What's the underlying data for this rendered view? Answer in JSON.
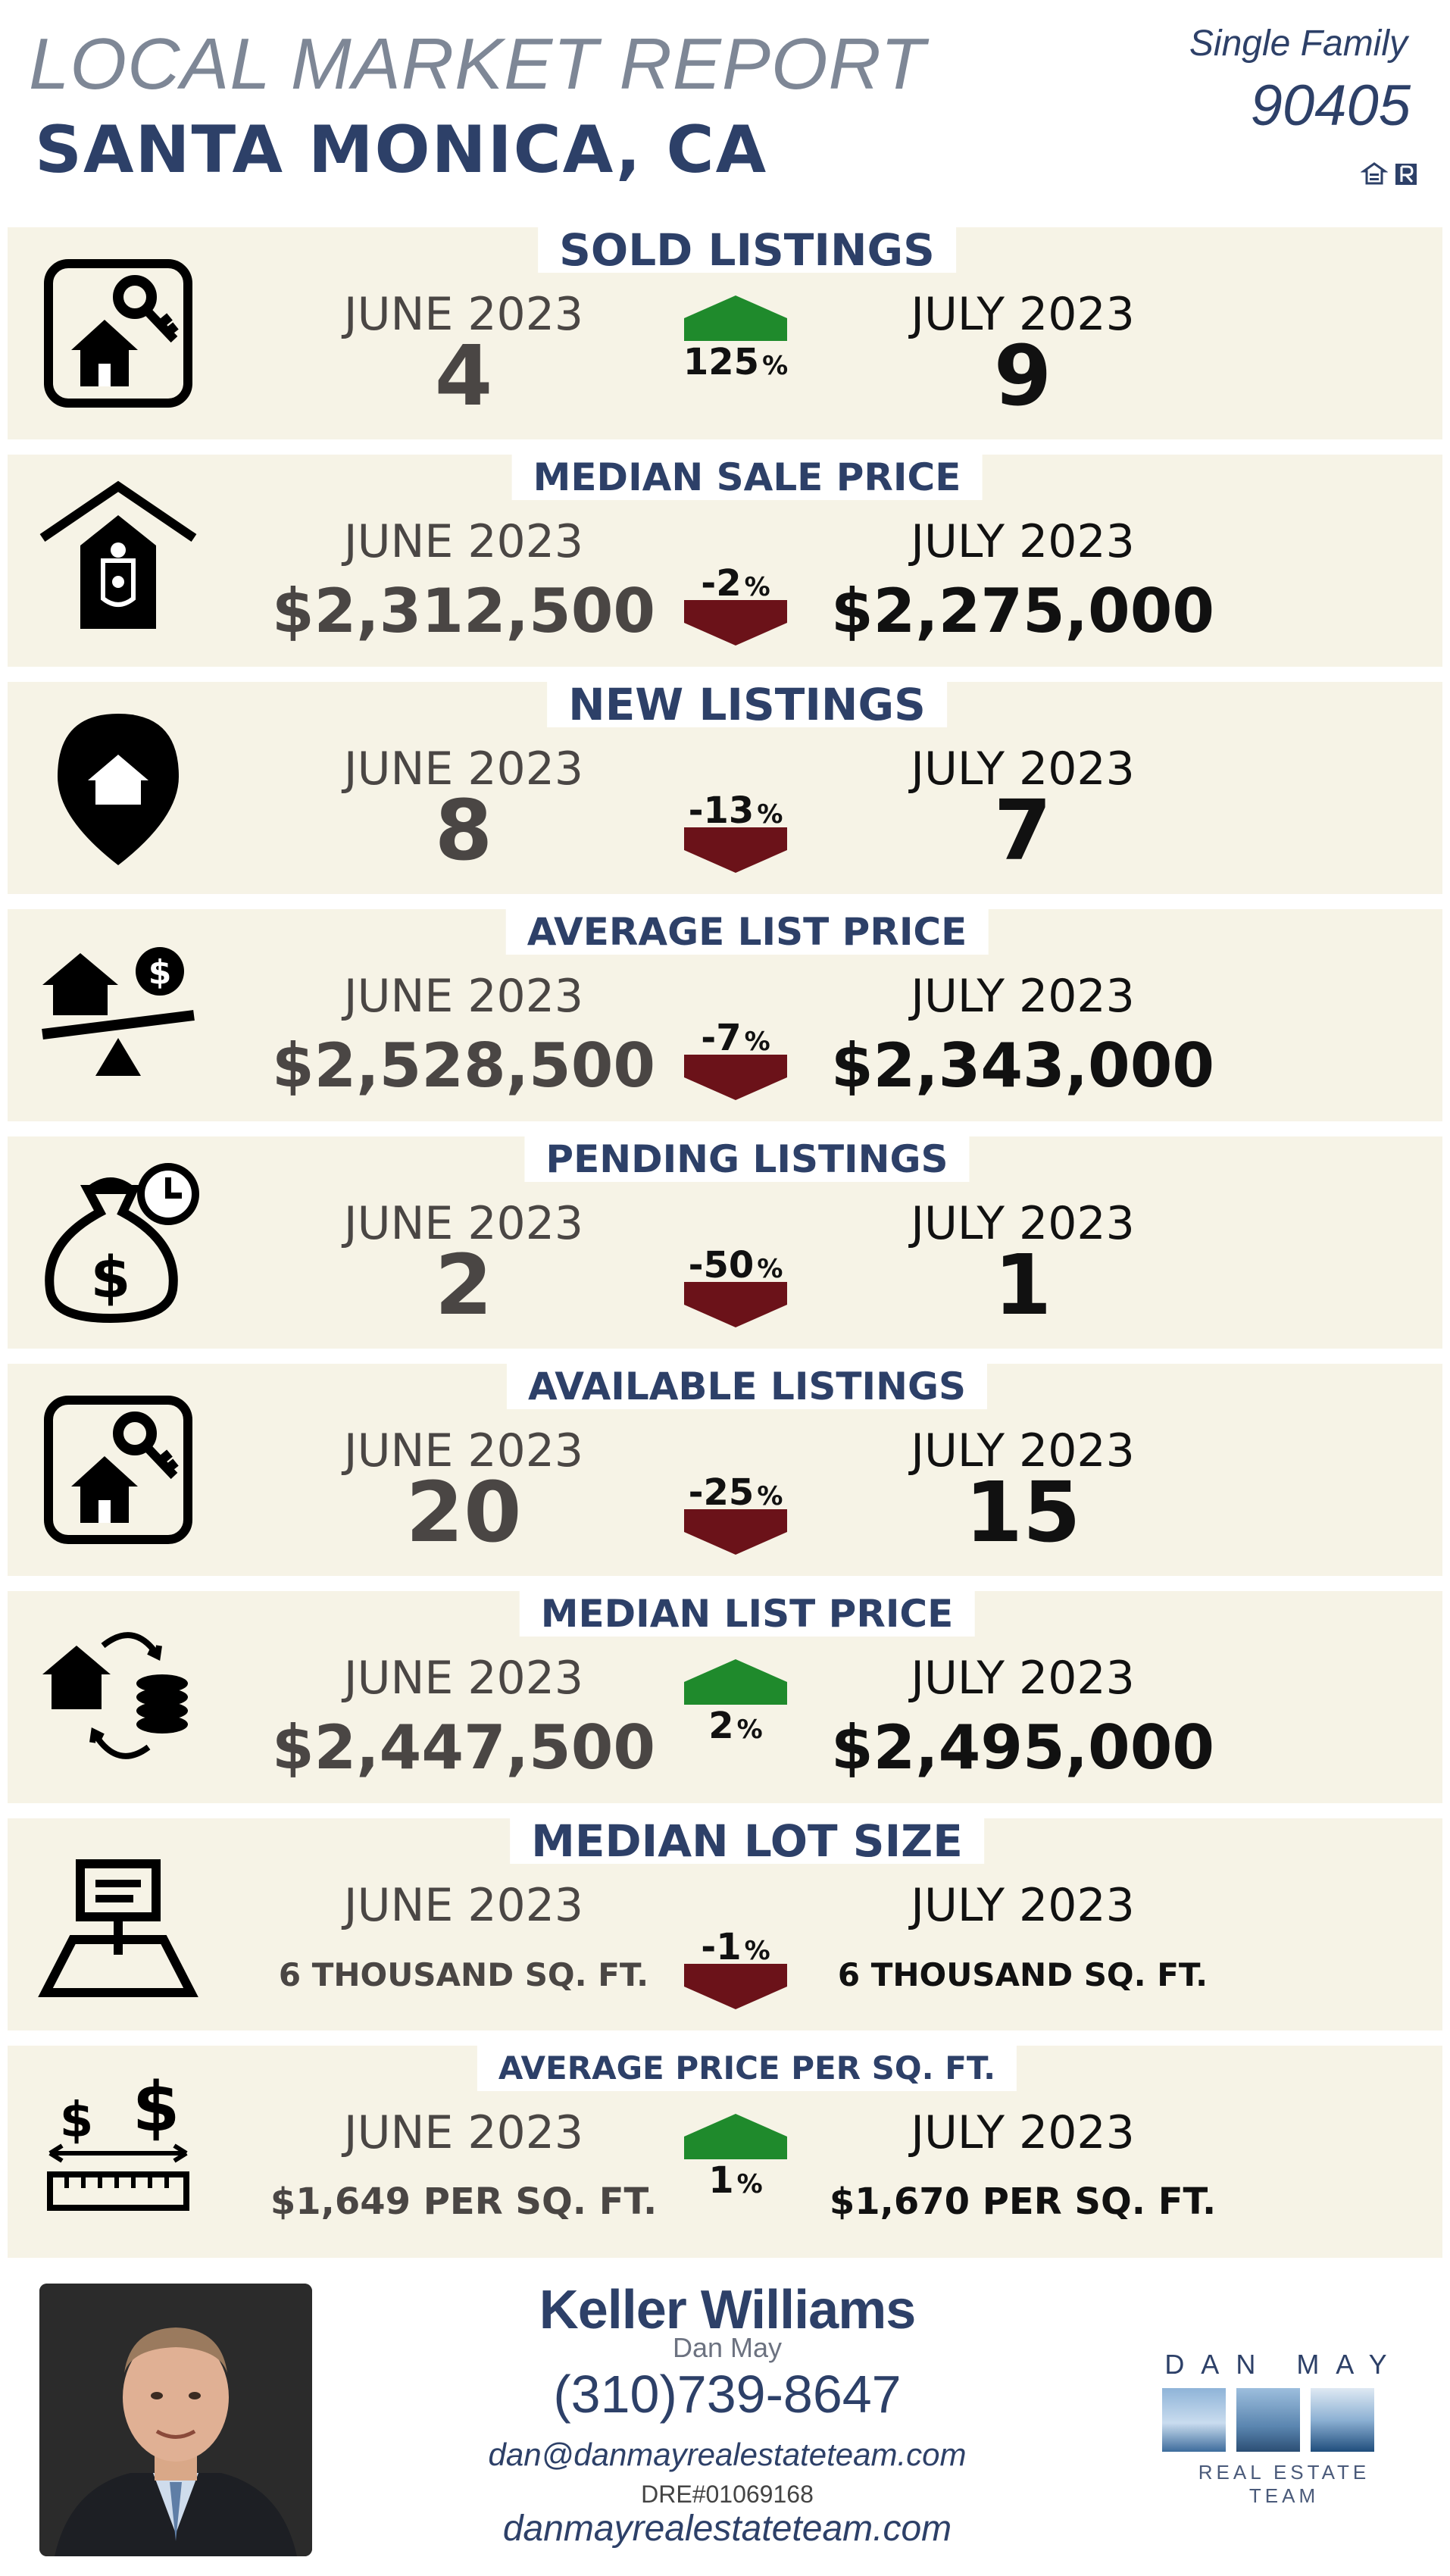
{
  "header": {
    "title": "LOCAL MARKET REPORT",
    "city": "SANTA MONICA, CA",
    "property_type": "Single Family",
    "zip": "90405",
    "logos": [
      "equal-housing-icon",
      "realtor-icon"
    ]
  },
  "colors": {
    "navy": "#2d4068",
    "up_green": "#1f8a2c",
    "down_maroon": "#6b1219",
    "panel": "#f6f3e6"
  },
  "sections": [
    {
      "title": "SOLD LISTINGS",
      "icon": "house-key-icon",
      "june_label": "JUNE 2023",
      "june_value": "4",
      "july_label": "JULY 2023",
      "july_value": "9",
      "change": "125",
      "direction": "up"
    },
    {
      "title": "MEDIAN SALE PRICE",
      "icon": "price-tag-house-icon",
      "june_label": "JUNE 2023",
      "june_value": "$2,312,500",
      "july_label": "JULY 2023",
      "july_value": "$2,275,000",
      "change": "-2",
      "direction": "down"
    },
    {
      "title": "NEW LISTINGS",
      "icon": "location-pin-house-icon",
      "june_label": "JUNE 2023",
      "june_value": "8",
      "july_label": "JULY 2023",
      "july_value": "7",
      "change": "-13",
      "direction": "down"
    },
    {
      "title": "AVERAGE LIST PRICE",
      "icon": "house-scale-icon",
      "june_label": "JUNE 2023",
      "june_value": "$2,528,500",
      "july_label": "JULY 2023",
      "july_value": "$2,343,000",
      "change": "-7",
      "direction": "down"
    },
    {
      "title": "PENDING LISTINGS",
      "icon": "money-bag-clock-icon",
      "june_label": "JUNE 2023",
      "june_value": "2",
      "july_label": "JULY 2023",
      "july_value": "1",
      "change": "-50",
      "direction": "down"
    },
    {
      "title": "AVAILABLE LISTINGS",
      "icon": "house-key-icon",
      "june_label": "JUNE 2023",
      "june_value": "20",
      "july_label": "JULY 2023",
      "july_value": "15",
      "change": "-25",
      "direction": "down"
    },
    {
      "title": "MEDIAN LIST PRICE",
      "icon": "house-coins-exchange-icon",
      "june_label": "JUNE 2023",
      "june_value": "$2,447,500",
      "july_label": "JULY 2023",
      "july_value": "$2,495,000",
      "change": "2",
      "direction": "up"
    },
    {
      "title": "MEDIAN LOT SIZE",
      "icon": "lot-sign-icon",
      "june_label": "JUNE 2023",
      "june_value": "6 THOUSAND SQ. FT.",
      "july_label": "JULY 2023",
      "july_value": "6 THOUSAND SQ. FT.",
      "change": "-1",
      "direction": "down"
    },
    {
      "title": "AVERAGE PRICE PER SQ. FT.",
      "icon": "dollar-ruler-icon",
      "june_label": "JUNE 2023",
      "june_value": "$1,649 PER SQ. FT.",
      "july_label": "JULY 2023",
      "july_value": "$1,670 PER SQ. FT.",
      "change": "1",
      "direction": "up"
    }
  ],
  "percent_sign": "%",
  "footer": {
    "company": "Keller Williams",
    "agent": "Dan May",
    "phone": "(310)739-8647",
    "email": "dan@danmayrealestateteam.com",
    "license": "DRE#01069168",
    "website": "danmayrealestateteam.com",
    "logo_top": "DAN MAY",
    "logo_bottom": "REAL ESTATE TEAM"
  }
}
